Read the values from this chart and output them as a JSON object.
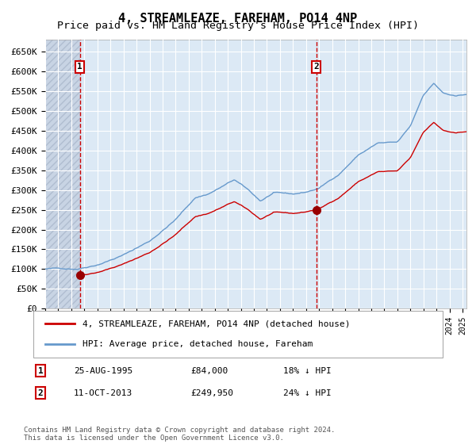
{
  "title": "4, STREAMLEAZE, FAREHAM, PO14 4NP",
  "subtitle": "Price paid vs. HM Land Registry's House Price Index (HPI)",
  "legend_line1": "4, STREAMLEAZE, FAREHAM, PO14 4NP (detached house)",
  "legend_line2": "HPI: Average price, detached house, Fareham",
  "sale1_date": "25-AUG-1995",
  "sale1_price": 84000,
  "sale1_label": "18% ↓ HPI",
  "sale1_year": 1995.65,
  "sale2_date": "11-OCT-2013",
  "sale2_price": 249950,
  "sale2_label": "24% ↓ HPI",
  "sale2_year": 2013.78,
  "hpi_color": "#6699cc",
  "price_color": "#cc0000",
  "sale_marker_color": "#990000",
  "vline_color": "#cc0000",
  "bg_color": "#dce9f5",
  "grid_color": "#ffffff",
  "title_fontsize": 11,
  "subtitle_fontsize": 9.5,
  "ylim": [
    0,
    680000
  ],
  "yticks": [
    0,
    50000,
    100000,
    150000,
    200000,
    250000,
    300000,
    350000,
    400000,
    450000,
    500000,
    550000,
    600000,
    650000
  ],
  "note": "Contains HM Land Registry data © Crown copyright and database right 2024.\nThis data is licensed under the Open Government Licence v3.0."
}
